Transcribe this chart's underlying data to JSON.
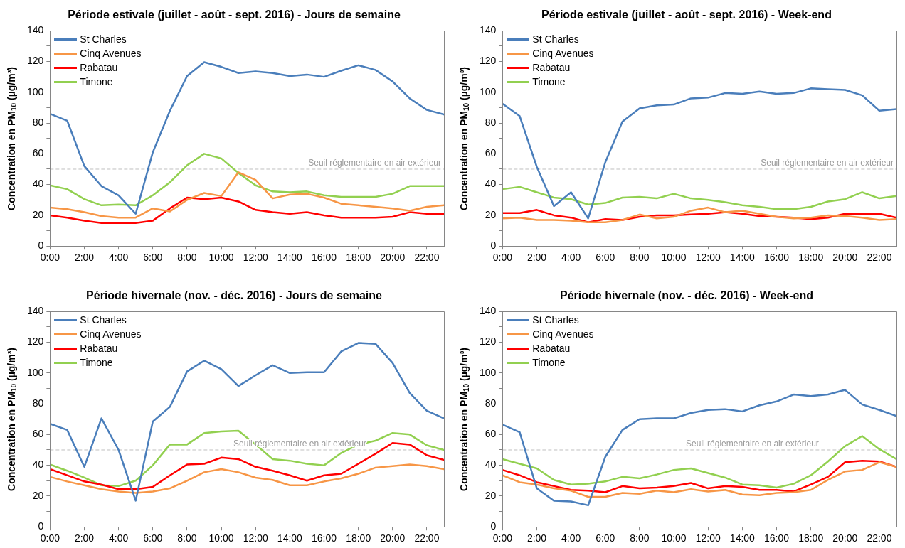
{
  "chart_data": [
    {
      "type": "line",
      "title": "Période estivale (juillet - août - sept. 2016) - Jours de semaine",
      "ylabel": "Concentration en PM$_{10}$ (µg/m³)",
      "x": [
        0,
        1,
        2,
        3,
        4,
        5,
        6,
        7,
        8,
        9,
        10,
        11,
        12,
        13,
        14,
        15,
        16,
        17,
        18,
        19,
        20,
        21,
        22,
        23
      ],
      "xlim": [
        0,
        23
      ],
      "xticks": [
        {
          "value": 0,
          "label": "0:00"
        },
        {
          "value": 2,
          "label": "2:00"
        },
        {
          "value": 4,
          "label": "4:00"
        },
        {
          "value": 6,
          "label": "6:00"
        },
        {
          "value": 8,
          "label": "8:00"
        },
        {
          "value": 10,
          "label": "10:00"
        },
        {
          "value": 12,
          "label": "12:00"
        },
        {
          "value": 14,
          "label": "14:00"
        },
        {
          "value": 16,
          "label": "16:00"
        },
        {
          "value": 18,
          "label": "18:00"
        },
        {
          "value": 20,
          "label": "20:00"
        },
        {
          "value": 22,
          "label": "22:00"
        }
      ],
      "ylim": [
        0,
        140
      ],
      "yticks": [
        0,
        {
          "value": 10,
          "label": null
        },
        20,
        {
          "value": 30,
          "label": null
        },
        40,
        {
          "value": 50,
          "label": null
        },
        60,
        {
          "value": 70,
          "label": null
        },
        80,
        {
          "value": 90,
          "label": null
        },
        100,
        {
          "value": 110,
          "label": null
        },
        120,
        {
          "value": 130,
          "label": null
        },
        140
      ],
      "legend": "top left",
      "marker": "none",
      "series": [
        {
          "name": "St Charles",
          "color": "#4a7ebb",
          "values": [
            86,
            81.5,
            52,
            39,
            33,
            21,
            61,
            88,
            110.5,
            119.5,
            116.5,
            112.5,
            113.5,
            112.5,
            110.5,
            111.5,
            110,
            114,
            117.5,
            114.5,
            107,
            96,
            88.5,
            85.5
          ]
        },
        {
          "name": "Cinq Avenues",
          "color": "#f79646",
          "values": [
            25,
            24,
            22,
            19.5,
            18.5,
            18.5,
            24.5,
            22.5,
            30,
            34.5,
            32.5,
            48,
            43,
            31,
            33.5,
            34,
            31.5,
            27.5,
            26.5,
            25.5,
            24.5,
            23,
            25.5,
            26.5
          ]
        },
        {
          "name": "Rabatau",
          "color": "#ff0000",
          "values": [
            20,
            18.5,
            16.5,
            15,
            15,
            15,
            16.5,
            24.5,
            31.5,
            30.5,
            31.5,
            29,
            23.5,
            22,
            21,
            22,
            20,
            18.5,
            18.5,
            18.5,
            19,
            22,
            21,
            21
          ]
        },
        {
          "name": "Timone",
          "color": "#92d050",
          "values": [
            39.5,
            37,
            30.5,
            26.5,
            27,
            26.5,
            33,
            41.5,
            52.5,
            60,
            57,
            47.5,
            39.5,
            35.5,
            35,
            35.5,
            33,
            32,
            32,
            32,
            34,
            39,
            39,
            39
          ]
        }
      ],
      "ref_lines": [
        {
          "axis": "y",
          "value": 50,
          "label": "Seuil réglementaire en air extérieur",
          "color": "#bfbfbf",
          "line_style": "dashed"
        }
      ]
    },
    {
      "type": "line",
      "title": "Période estivale (juillet - août - sept. 2016) - Week-end",
      "ylabel": "Concentration en PM$_{10}$ (µg/m³)",
      "x": [
        0,
        1,
        2,
        3,
        4,
        5,
        6,
        7,
        8,
        9,
        10,
        11,
        12,
        13,
        14,
        15,
        16,
        17,
        18,
        19,
        20,
        21,
        22,
        23
      ],
      "xlim": [
        0,
        23
      ],
      "xticks": [
        {
          "value": 0,
          "label": "0:00"
        },
        {
          "value": 2,
          "label": "2:00"
        },
        {
          "value": 4,
          "label": "4:00"
        },
        {
          "value": 6,
          "label": "6:00"
        },
        {
          "value": 8,
          "label": "8:00"
        },
        {
          "value": 10,
          "label": "10:00"
        },
        {
          "value": 12,
          "label": "12:00"
        },
        {
          "value": 14,
          "label": "14:00"
        },
        {
          "value": 16,
          "label": "16:00"
        },
        {
          "value": 18,
          "label": "18:00"
        },
        {
          "value": 20,
          "label": "20:00"
        },
        {
          "value": 22,
          "label": "22:00"
        }
      ],
      "ylim": [
        0,
        140
      ],
      "yticks": [
        0,
        {
          "value": 10,
          "label": null
        },
        20,
        {
          "value": 30,
          "label": null
        },
        40,
        {
          "value": 50,
          "label": null
        },
        60,
        {
          "value": 70,
          "label": null
        },
        80,
        {
          "value": 90,
          "label": null
        },
        100,
        {
          "value": 110,
          "label": null
        },
        120,
        {
          "value": 130,
          "label": null
        },
        140
      ],
      "legend": "top left",
      "marker": "none",
      "series": [
        {
          "name": "St Charles",
          "color": "#4a7ebb",
          "values": [
            92.5,
            84.5,
            51.5,
            26,
            35,
            18,
            54.5,
            81,
            89.5,
            91.5,
            92,
            96,
            96.5,
            99.5,
            99,
            100.5,
            99,
            99.5,
            102.5,
            102,
            101.5,
            98,
            88,
            89
          ]
        },
        {
          "name": "Cinq Avenues",
          "color": "#f79646",
          "values": [
            18,
            18.5,
            17,
            17,
            16.5,
            15.5,
            15.5,
            17,
            20.5,
            18,
            19,
            23,
            25,
            22,
            23,
            21,
            19,
            18,
            18.5,
            20,
            19.5,
            18.5,
            17,
            17.5
          ]
        },
        {
          "name": "Rabatau",
          "color": "#ff0000",
          "values": [
            21.5,
            21.5,
            23.5,
            20,
            18.5,
            15.5,
            17.5,
            17,
            19,
            20,
            20,
            20.5,
            21,
            22,
            21,
            19.5,
            19,
            18.5,
            17.5,
            18.5,
            21,
            21,
            21,
            18.5
          ]
        },
        {
          "name": "Timone",
          "color": "#92d050",
          "values": [
            37,
            38.5,
            35,
            31.5,
            30.5,
            27,
            28,
            31.5,
            32,
            31,
            34,
            31,
            30,
            28.5,
            26.5,
            25.5,
            24,
            24,
            25.5,
            29,
            30.5,
            35,
            31,
            32.5
          ]
        }
      ],
      "ref_lines": [
        {
          "axis": "y",
          "value": 50,
          "label": "Seuil réglementaire en air extérieur",
          "color": "#bfbfbf",
          "line_style": "dashed"
        }
      ]
    },
    {
      "type": "line",
      "title": "Période hivernale (nov. - déc. 2016) - Jours de semaine",
      "ylabel": "Concentration en PM$_{10}$ (µg/m³)",
      "x": [
        0,
        1,
        2,
        3,
        4,
        5,
        6,
        7,
        8,
        9,
        10,
        11,
        12,
        13,
        14,
        15,
        16,
        17,
        18,
        19,
        20,
        21,
        22,
        23
      ],
      "xlim": [
        0,
        23
      ],
      "xticks": [
        {
          "value": 0,
          "label": "0:00"
        },
        {
          "value": 2,
          "label": "2:00"
        },
        {
          "value": 4,
          "label": "4:00"
        },
        {
          "value": 6,
          "label": "6:00"
        },
        {
          "value": 8,
          "label": "8:00"
        },
        {
          "value": 10,
          "label": "10:00"
        },
        {
          "value": 12,
          "label": "12:00"
        },
        {
          "value": 14,
          "label": "14:00"
        },
        {
          "value": 16,
          "label": "16:00"
        },
        {
          "value": 18,
          "label": "18:00"
        },
        {
          "value": 20,
          "label": "20:00"
        },
        {
          "value": 22,
          "label": "22:00"
        }
      ],
      "ylim": [
        0,
        140
      ],
      "yticks": [
        0,
        {
          "value": 10,
          "label": null
        },
        20,
        {
          "value": 30,
          "label": null
        },
        40,
        {
          "value": 50,
          "label": null
        },
        60,
        {
          "value": 70,
          "label": null
        },
        80,
        {
          "value": 90,
          "label": null
        },
        100,
        {
          "value": 110,
          "label": null
        },
        120,
        {
          "value": 130,
          "label": null
        },
        140
      ],
      "legend": "top left",
      "marker": "none",
      "series": [
        {
          "name": "St Charles",
          "color": "#4a7ebb",
          "values": [
            67,
            63,
            39,
            70.5,
            50,
            17,
            68.5,
            78,
            101,
            108,
            102.5,
            91.5,
            98.5,
            105,
            100,
            100.5,
            100.5,
            114,
            119.5,
            119,
            106.5,
            87,
            75.5,
            70.5
          ]
        },
        {
          "name": "Cinq Avenues",
          "color": "#f79646",
          "values": [
            32.5,
            29.5,
            27,
            24.5,
            23,
            22,
            23,
            25,
            30,
            35.5,
            37.5,
            35.5,
            32,
            30.5,
            27,
            27,
            29.5,
            31.5,
            34.5,
            38.5,
            39.5,
            40.5,
            39.5,
            37.5
          ]
        },
        {
          "name": "Rabatau",
          "color": "#ff0000",
          "values": [
            37.5,
            33.5,
            29.5,
            27.5,
            24.5,
            24.5,
            26,
            33.5,
            40.5,
            41,
            45,
            44,
            39,
            36.5,
            33.5,
            30,
            33.5,
            34.5,
            41,
            47.5,
            54.5,
            53.5,
            46.5,
            43.5
          ]
        },
        {
          "name": "Timone",
          "color": "#92d050",
          "values": [
            40.5,
            36.5,
            32,
            27,
            26.5,
            30,
            40,
            53.5,
            53.5,
            61,
            62,
            62.5,
            53.5,
            44,
            43,
            41,
            40,
            48,
            53.5,
            56,
            61,
            60,
            53,
            50
          ]
        }
      ],
      "ref_lines": [
        {
          "axis": "y",
          "value": 50,
          "label": "Seuil réglementaire en air extérieur",
          "color": "#bfbfbf",
          "line_style": "dashed"
        }
      ]
    },
    {
      "type": "line",
      "title": "Période hivernale (nov. - déc. 2016) - Week-end",
      "ylabel": "Concentration en PM$_{10}$ (µg/m³)",
      "x": [
        0,
        1,
        2,
        3,
        4,
        5,
        6,
        7,
        8,
        9,
        10,
        11,
        12,
        13,
        14,
        15,
        16,
        17,
        18,
        19,
        20,
        21,
        22,
        23
      ],
      "xlim": [
        0,
        23
      ],
      "xticks": [
        {
          "value": 0,
          "label": "0:00"
        },
        {
          "value": 2,
          "label": "2:00"
        },
        {
          "value": 4,
          "label": "4:00"
        },
        {
          "value": 6,
          "label": "6:00"
        },
        {
          "value": 8,
          "label": "8:00"
        },
        {
          "value": 10,
          "label": "10:00"
        },
        {
          "value": 12,
          "label": "12:00"
        },
        {
          "value": 14,
          "label": "14:00"
        },
        {
          "value": 16,
          "label": "16:00"
        },
        {
          "value": 18,
          "label": "18:00"
        },
        {
          "value": 20,
          "label": "20:00"
        },
        {
          "value": 22,
          "label": "22:00"
        }
      ],
      "ylim": [
        0,
        140
      ],
      "yticks": [
        0,
        {
          "value": 10,
          "label": null
        },
        20,
        {
          "value": 30,
          "label": null
        },
        40,
        {
          "value": 50,
          "label": null
        },
        60,
        {
          "value": 70,
          "label": null
        },
        80,
        {
          "value": 90,
          "label": null
        },
        100,
        {
          "value": 110,
          "label": null
        },
        120,
        {
          "value": 130,
          "label": null
        },
        140
      ],
      "legend": "top left",
      "marker": "none",
      "series": [
        {
          "name": "St Charles",
          "color": "#4a7ebb",
          "values": [
            66.5,
            61.5,
            25,
            17,
            16.5,
            14,
            45.5,
            63,
            70,
            70.5,
            70.5,
            74,
            76,
            76.5,
            75,
            79,
            81.5,
            86,
            85,
            86,
            89,
            79.5,
            76,
            72
          ]
        },
        {
          "name": "Cinq Avenues",
          "color": "#f79646",
          "values": [
            33.5,
            29,
            27.5,
            25,
            23.5,
            19.5,
            19.5,
            22,
            21.5,
            23.5,
            22.5,
            24.5,
            23,
            24,
            21,
            20.5,
            22,
            22.5,
            24,
            30.5,
            36,
            37,
            42,
            39
          ]
        },
        {
          "name": "Rabatau",
          "color": "#ff0000",
          "values": [
            37,
            33.5,
            29,
            26.5,
            24,
            23.5,
            22.5,
            26.5,
            25,
            25.5,
            26.5,
            28.5,
            25,
            26.5,
            26,
            24,
            24,
            23,
            27.5,
            32.5,
            42,
            43,
            42.5,
            39
          ]
        },
        {
          "name": "Timone",
          "color": "#92d050",
          "values": [
            44,
            41,
            38,
            30.5,
            27.5,
            28,
            29.5,
            32.5,
            31.5,
            34,
            37,
            38,
            35,
            32,
            27.5,
            27,
            25.5,
            28,
            33.5,
            42.5,
            52.5,
            59,
            50.5,
            44
          ]
        }
      ],
      "ref_lines": [
        {
          "axis": "y",
          "value": 50,
          "label": "Seuil réglementaire en air extérieur",
          "color": "#bfbfbf",
          "line_style": "dashed"
        }
      ]
    }
  ]
}
